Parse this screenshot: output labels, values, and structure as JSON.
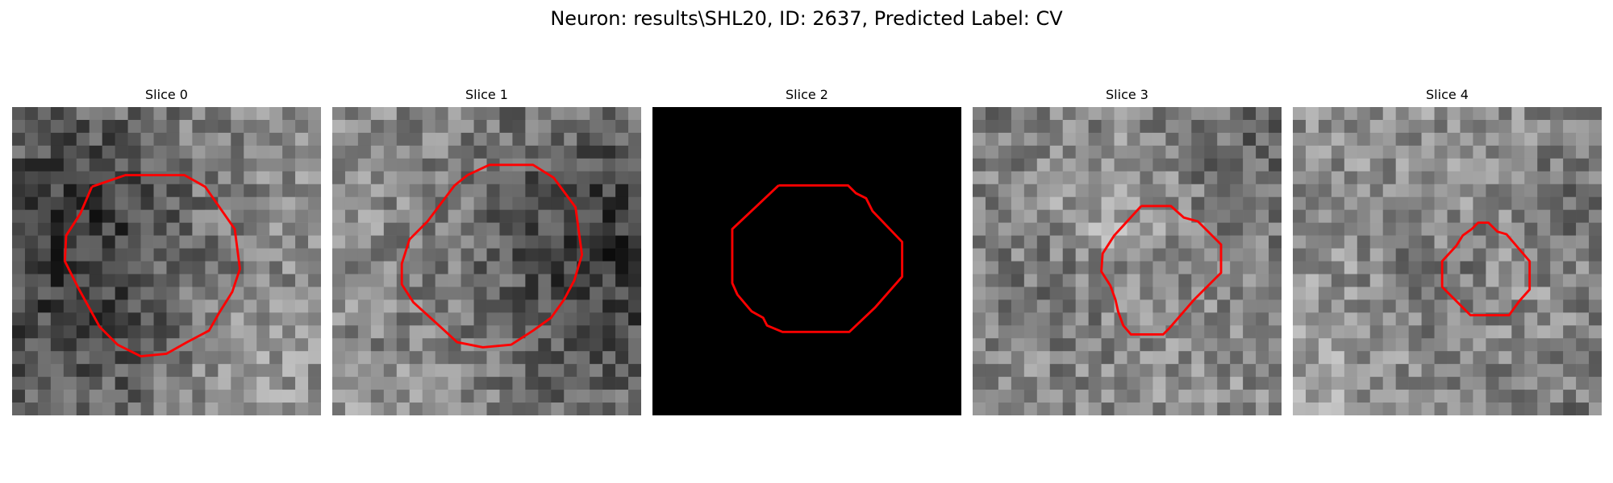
{
  "figure": {
    "title": "Neuron: results\\SHL20, ID: 2637, Predicted Label: CV"
  },
  "panels": [
    {
      "title": "Slice 0"
    },
    {
      "title": "Slice 1"
    },
    {
      "title": "Slice 2"
    },
    {
      "title": "Slice 3"
    },
    {
      "title": "Slice 4"
    }
  ],
  "colors": {
    "contour": "#ff0000",
    "background": "#ffffff",
    "blank_slice": "#000000"
  }
}
